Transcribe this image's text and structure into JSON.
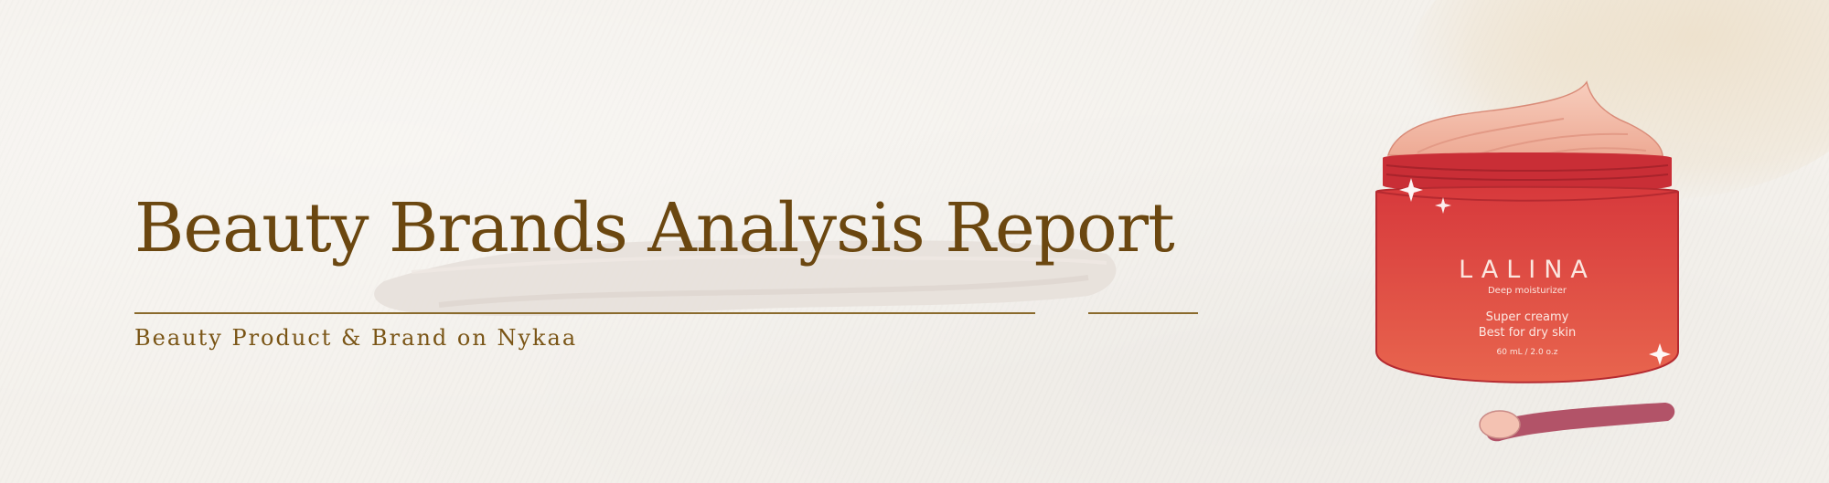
{
  "banner": {
    "title": "Beauty Brands Analysis Report",
    "subtitle": "Beauty Product & Brand on Nykaa"
  },
  "product": {
    "brand": "LALINA",
    "description": "Deep moisturizer",
    "features": [
      "Super creamy",
      "Best for dry skin"
    ],
    "volume": "60 mL / 2.0 o.z"
  },
  "colors": {
    "background": "#f4f1ec",
    "title": "#6b4710",
    "rule": "#8a6a2c",
    "jar": "#d9443f",
    "cream": "#f2b9a5"
  }
}
